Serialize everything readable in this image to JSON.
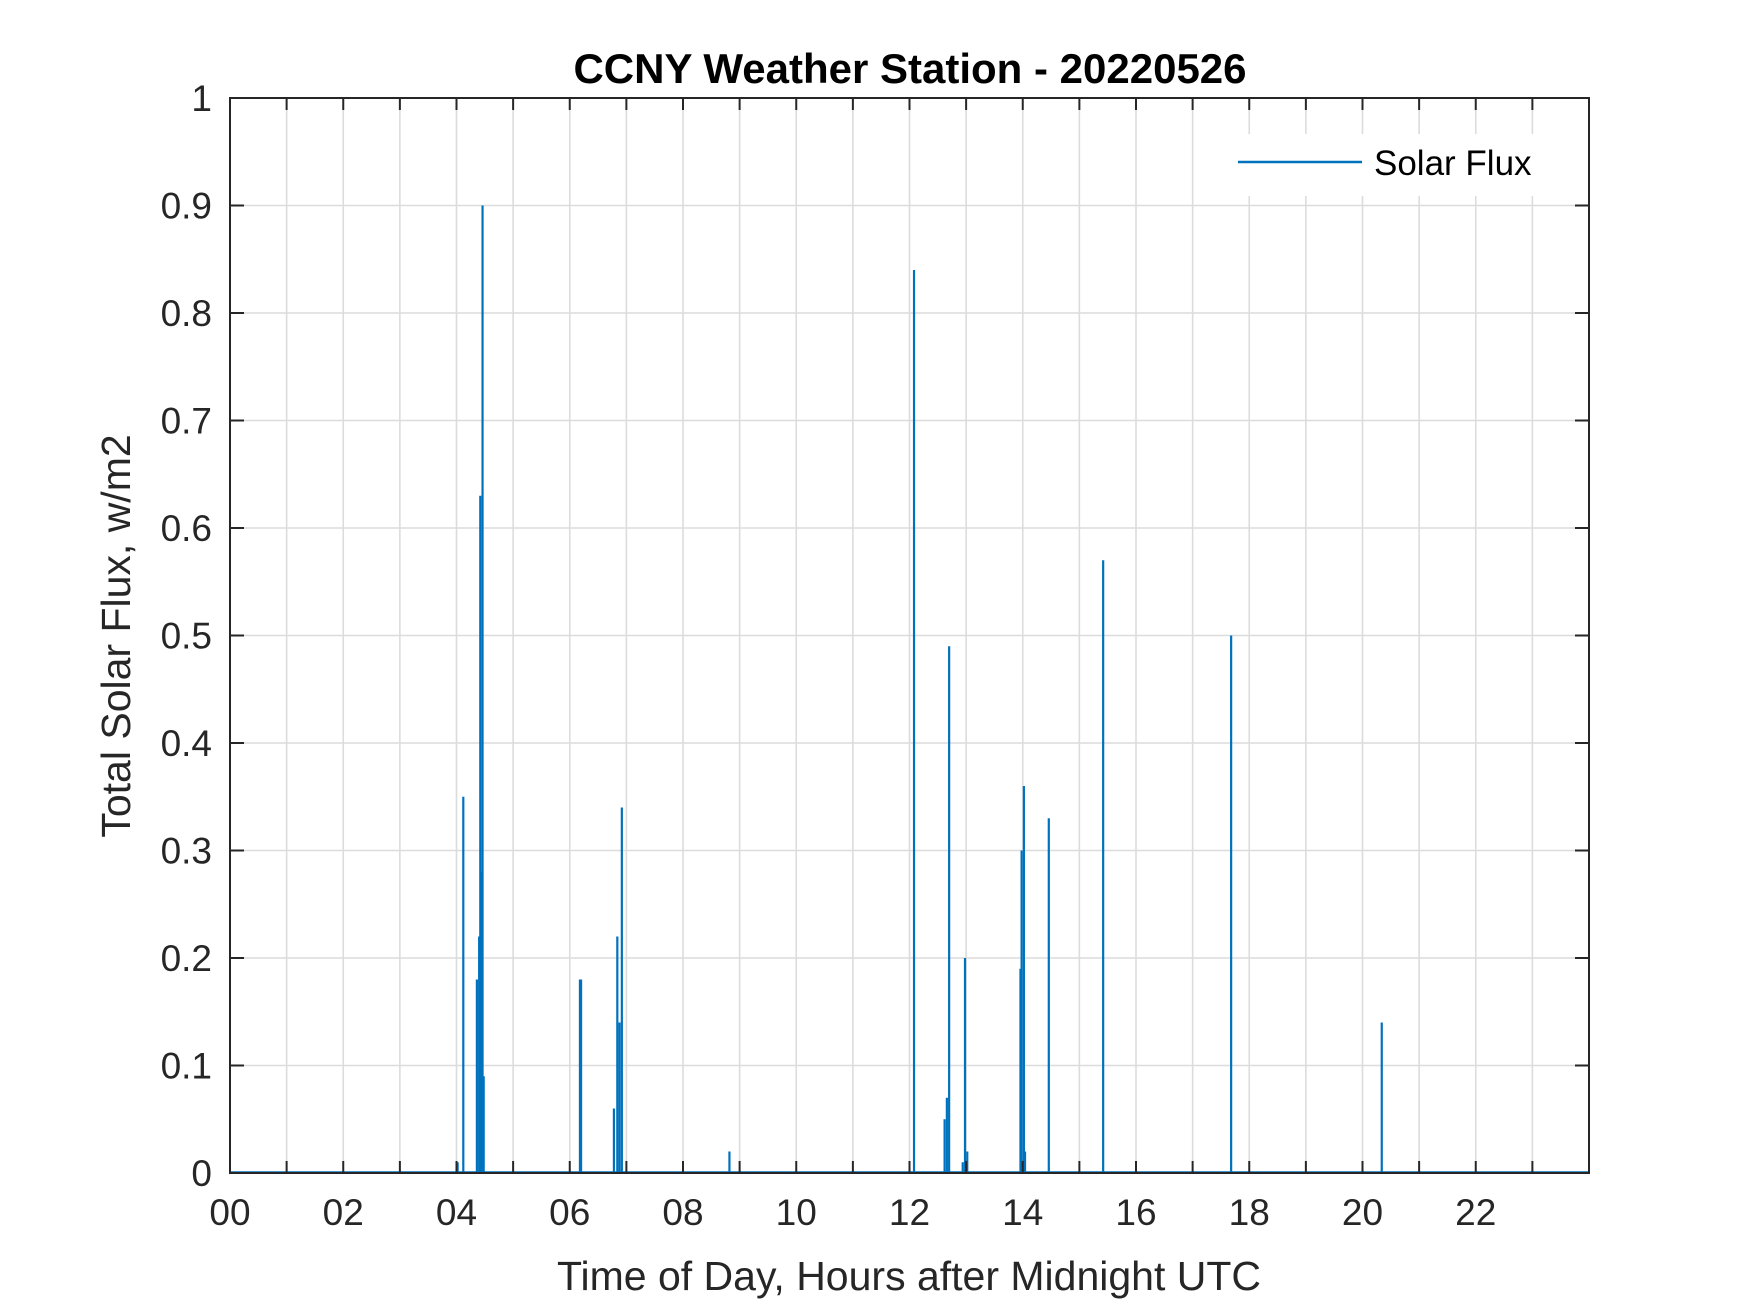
{
  "chart_data": {
    "type": "line",
    "title": "CCNY Weather Station - 20220526",
    "xlabel": "Time of Day, Hours after Midnight UTC",
    "ylabel": "Total Solar Flux, w/m2",
    "xlim": [
      0,
      24
    ],
    "ylim": [
      0,
      1
    ],
    "xticks": [
      "00",
      "02",
      "04",
      "06",
      "08",
      "10",
      "12",
      "14",
      "16",
      "18",
      "20",
      "22"
    ],
    "xtick_values": [
      0,
      2,
      4,
      6,
      8,
      10,
      12,
      14,
      16,
      18,
      20,
      22
    ],
    "yticks": [
      "0",
      "0.1",
      "0.2",
      "0.3",
      "0.4",
      "0.5",
      "0.6",
      "0.7",
      "0.8",
      "0.9",
      "1"
    ],
    "ytick_values": [
      0,
      0.1,
      0.2,
      0.3,
      0.4,
      0.5,
      0.6,
      0.7,
      0.8,
      0.9,
      1
    ],
    "grid": true,
    "legend_position": "top-right",
    "series": [
      {
        "name": "Solar Flux",
        "color": "#0072BD",
        "spikes": [
          [
            4.02,
            0.01
          ],
          [
            4.12,
            0.35
          ],
          [
            4.36,
            0.18
          ],
          [
            4.4,
            0.22
          ],
          [
            4.42,
            0.63
          ],
          [
            4.44,
            0.28
          ],
          [
            4.46,
            0.9
          ],
          [
            4.48,
            0.09
          ],
          [
            6.18,
            0.18
          ],
          [
            6.2,
            0.18
          ],
          [
            6.78,
            0.06
          ],
          [
            6.84,
            0.22
          ],
          [
            6.88,
            0.14
          ],
          [
            6.92,
            0.34
          ],
          [
            8.82,
            0.02
          ],
          [
            12.08,
            0.84
          ],
          [
            12.62,
            0.05
          ],
          [
            12.66,
            0.07
          ],
          [
            12.7,
            0.49
          ],
          [
            12.94,
            0.01
          ],
          [
            12.98,
            0.2
          ],
          [
            13.02,
            0.02
          ],
          [
            13.96,
            0.19
          ],
          [
            13.98,
            0.3
          ],
          [
            14.02,
            0.36
          ],
          [
            14.04,
            0.02
          ],
          [
            14.46,
            0.33
          ],
          [
            15.42,
            0.57
          ],
          [
            17.68,
            0.5
          ],
          [
            20.34,
            0.14
          ]
        ]
      }
    ]
  }
}
